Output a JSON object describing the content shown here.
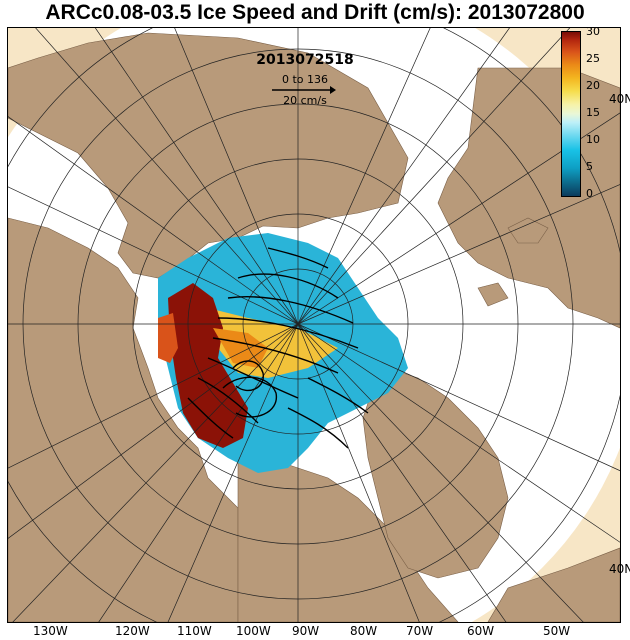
{
  "title": "ARCc0.08-03.5 Ice Speed and Drift (cm/s): 2013072800",
  "vector_date": "2013072518",
  "vector_range": "0 to 136",
  "vector_scale": "20 cm/s",
  "colorbar": {
    "ticks": [
      "30",
      "25",
      "20",
      "15",
      "10",
      "5",
      "0"
    ]
  },
  "longitude_labels": [
    "130W",
    "120W",
    "110W",
    "100W",
    "90W",
    "80W",
    "70W",
    "60W",
    "50W"
  ],
  "latitude_labels": [
    "40N",
    "40N"
  ],
  "colors": {
    "land": "#b89a7a",
    "ocean": "#ffffff",
    "slow_ice": "#2ab4d8",
    "fast_ice": "#8b1207",
    "outer_zone": "#f7e6c6"
  }
}
